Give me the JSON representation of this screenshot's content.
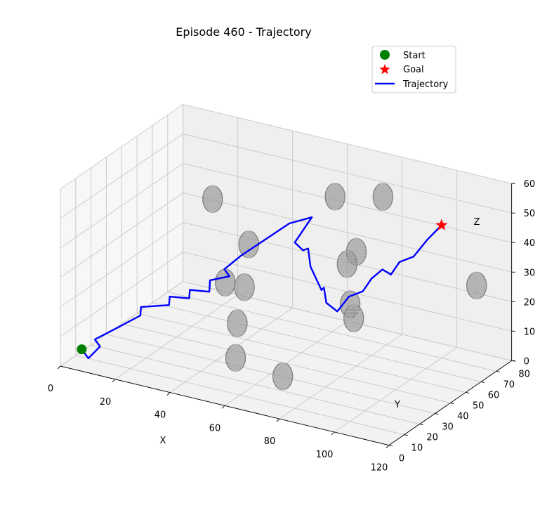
{
  "chart_data": {
    "type": "line",
    "projection": "3d",
    "title": "Episode 460 - Trajectory",
    "xlabel": "X",
    "ylabel": "Y",
    "zlabel": "Z",
    "xlim": [
      0,
      120
    ],
    "ylim": [
      0,
      80
    ],
    "zlim": [
      0,
      60
    ],
    "xticks": [
      "0",
      "20",
      "40",
      "60",
      "80",
      "100",
      "120"
    ],
    "yticks": [
      "0",
      "10",
      "20",
      "30",
      "40",
      "50",
      "60",
      "70",
      "80"
    ],
    "zticks": [
      "0",
      "10",
      "20",
      "30",
      "40",
      "50",
      "60"
    ],
    "grid": true,
    "legend_position": "top-right",
    "legend": [
      {
        "label": "Start",
        "marker": "circle",
        "color": "#008000"
      },
      {
        "label": "Goal",
        "marker": "star",
        "color": "#ff0000"
      },
      {
        "label": "Trajectory",
        "marker": "line",
        "color": "#0000ff"
      }
    ],
    "start": {
      "x": 5,
      "y": 5,
      "z": 5
    },
    "goal": {
      "x": 100,
      "y": 70,
      "z": 45
    },
    "obstacle_color": "#808080",
    "obstacles": [
      {
        "x": 22,
        "y": 60,
        "z": 40
      },
      {
        "x": 60,
        "y": 72,
        "z": 45
      },
      {
        "x": 73,
        "y": 80,
        "z": 45
      },
      {
        "x": 38,
        "y": 55,
        "z": 30
      },
      {
        "x": 70,
        "y": 68,
        "z": 30
      },
      {
        "x": 70,
        "y": 62,
        "z": 28
      },
      {
        "x": 35,
        "y": 45,
        "z": 20
      },
      {
        "x": 42,
        "y": 45,
        "z": 20
      },
      {
        "x": 75,
        "y": 55,
        "z": 18
      },
      {
        "x": 78,
        "y": 52,
        "z": 15
      },
      {
        "x": 45,
        "y": 35,
        "z": 12
      },
      {
        "x": 50,
        "y": 25,
        "z": 5
      },
      {
        "x": 70,
        "y": 20,
        "z": 5
      },
      {
        "x": 110,
        "y": 75,
        "z": 25
      }
    ],
    "trajectory": [
      {
        "x": 5,
        "y": 5,
        "z": 5
      },
      {
        "x": 8,
        "y": 4,
        "z": 3
      },
      {
        "x": 10,
        "y": 8,
        "z": 6
      },
      {
        "x": 7,
        "y": 10,
        "z": 7
      },
      {
        "x": 12,
        "y": 16,
        "z": 10
      },
      {
        "x": 18,
        "y": 20,
        "z": 14
      },
      {
        "x": 16,
        "y": 24,
        "z": 15
      },
      {
        "x": 24,
        "y": 28,
        "z": 16
      },
      {
        "x": 22,
        "y": 32,
        "z": 17
      },
      {
        "x": 28,
        "y": 34,
        "z": 17
      },
      {
        "x": 26,
        "y": 38,
        "z": 18
      },
      {
        "x": 32,
        "y": 40,
        "z": 18
      },
      {
        "x": 30,
        "y": 44,
        "z": 20
      },
      {
        "x": 36,
        "y": 46,
        "z": 22
      },
      {
        "x": 33,
        "y": 48,
        "z": 23
      },
      {
        "x": 38,
        "y": 50,
        "z": 28
      },
      {
        "x": 44,
        "y": 55,
        "z": 33
      },
      {
        "x": 50,
        "y": 60,
        "z": 38
      },
      {
        "x": 56,
        "y": 64,
        "z": 40
      },
      {
        "x": 52,
        "y": 60,
        "z": 32
      },
      {
        "x": 55,
        "y": 60,
        "z": 30
      },
      {
        "x": 58,
        "y": 58,
        "z": 32
      },
      {
        "x": 60,
        "y": 56,
        "z": 27
      },
      {
        "x": 64,
        "y": 56,
        "z": 20
      },
      {
        "x": 66,
        "y": 54,
        "z": 22
      },
      {
        "x": 68,
        "y": 52,
        "z": 18
      },
      {
        "x": 72,
        "y": 52,
        "z": 16
      },
      {
        "x": 74,
        "y": 56,
        "z": 20
      },
      {
        "x": 78,
        "y": 58,
        "z": 22
      },
      {
        "x": 80,
        "y": 60,
        "z": 26
      },
      {
        "x": 84,
        "y": 60,
        "z": 30
      },
      {
        "x": 86,
        "y": 62,
        "z": 28
      },
      {
        "x": 88,
        "y": 64,
        "z": 32
      },
      {
        "x": 92,
        "y": 66,
        "z": 34
      },
      {
        "x": 96,
        "y": 68,
        "z": 40
      },
      {
        "x": 100,
        "y": 70,
        "z": 45
      }
    ]
  }
}
